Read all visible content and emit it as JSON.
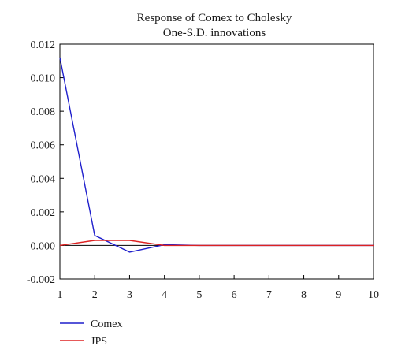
{
  "chart_data": {
    "type": "line",
    "title": "Response of Comex to Cholesky",
    "subtitle": "One-S.D. innovations",
    "x": [
      1,
      2,
      3,
      4,
      5,
      6,
      7,
      8,
      9,
      10
    ],
    "xlim": [
      1,
      10
    ],
    "ylim": [
      -0.002,
      0.012
    ],
    "x_ticks": [
      "1",
      "2",
      "3",
      "4",
      "5",
      "6",
      "7",
      "8",
      "9",
      "10"
    ],
    "y_ticks": [
      "0.012",
      "0.010",
      "0.008",
      "0.006",
      "0.004",
      "0.002",
      "0.000",
      "-0.002"
    ],
    "zero_line": true,
    "grid": false,
    "legend_position": "bottom-left",
    "series": [
      {
        "name": "Comex",
        "color": "#1f1fcc",
        "values": [
          0.0112,
          0.0006,
          -0.0004,
          5e-05,
          0.0,
          0.0,
          0.0,
          0.0,
          0.0,
          0.0
        ]
      },
      {
        "name": "JPS",
        "color": "#dd2222",
        "values": [
          0.0,
          0.0003,
          0.0003,
          0.0,
          0.0,
          0.0,
          0.0,
          0.0,
          0.0,
          0.0
        ]
      }
    ]
  }
}
